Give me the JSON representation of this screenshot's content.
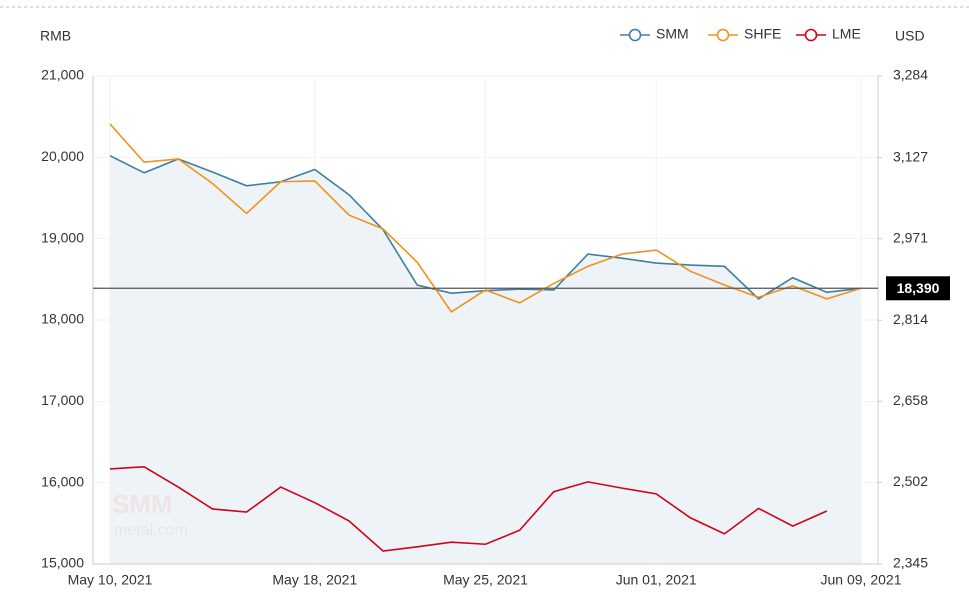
{
  "chart_data": {
    "type": "line",
    "y_label": "RMB",
    "y2_label": "USD",
    "categories": [
      "May 10, 2021",
      null,
      null,
      null,
      null,
      null,
      "May 18, 2021",
      null,
      null,
      null,
      null,
      "May 25, 2021",
      null,
      null,
      null,
      null,
      "Jun 01, 2021",
      null,
      null,
      null,
      null,
      null,
      "Jun 09, 2021"
    ],
    "series": [
      {
        "name": "SMM",
        "color": "#3d7fa3",
        "area": true,
        "values": [
          20020,
          19810,
          19980,
          19820,
          19650,
          19700,
          19850,
          19540,
          19110,
          18430,
          18330,
          18360,
          18380,
          18370,
          18810,
          18760,
          18700,
          18675,
          18660,
          18260,
          18520,
          18340,
          18390
        ]
      },
      {
        "name": "SHFE",
        "color": "#f0921c",
        "values": [
          20410,
          19940,
          19980,
          19680,
          19310,
          19700,
          19710,
          19290,
          19120,
          18710,
          18100,
          18370,
          18210,
          18450,
          18660,
          18810,
          18860,
          18600,
          18430,
          18280,
          18420,
          18260,
          18390
        ]
      },
      {
        "name": "LME",
        "color": "#d0021b",
        "axis": "y2",
        "values": [
          2528,
          2532,
          2493,
          2451,
          2445,
          2493,
          2463,
          2428,
          2370,
          2378,
          2387,
          2383,
          2410,
          2484,
          2503,
          2491,
          2480,
          2434,
          2403,
          2452,
          2418,
          2447,
          null
        ]
      }
    ],
    "ylim": [
      15000,
      21000
    ],
    "yticks": [
      {
        "value": 15000,
        "label": "15,000"
      },
      {
        "value": 16000,
        "label": "16,000"
      },
      {
        "value": 17000,
        "label": "17,000"
      },
      {
        "value": 18000,
        "label": "18,000"
      },
      {
        "value": 19000,
        "label": "19,000"
      },
      {
        "value": 20000,
        "label": "20,000"
      },
      {
        "value": 21000,
        "label": "21,000"
      }
    ],
    "y2lim": [
      2345,
      3284
    ],
    "y2ticks": [
      {
        "value": 2345,
        "label": "2,345"
      },
      {
        "value": 2502,
        "label": "2,502"
      },
      {
        "value": 2658,
        "label": "2,658"
      },
      {
        "value": 2814,
        "label": "2,814"
      },
      {
        "value": 2971,
        "label": "2,971"
      },
      {
        "value": 3127,
        "label": "3,127"
      },
      {
        "value": 3284,
        "label": "3,284"
      }
    ],
    "reference_line": {
      "value": 18390,
      "label": "18,390"
    },
    "watermark": [
      "SMM",
      "metal.com"
    ],
    "grid": true,
    "legend": "top-right"
  }
}
